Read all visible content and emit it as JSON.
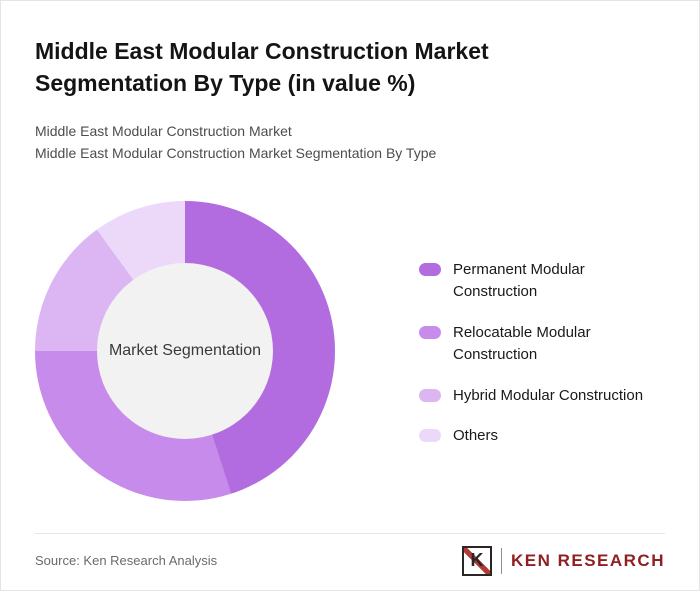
{
  "header": {
    "title": "Middle East Modular Construction Market Segmentation By Type (in value %)",
    "subtitle1": "Middle East Modular Construction Market",
    "subtitle2": "Middle East Modular Construction Market Segmentation By Type"
  },
  "chart_data": {
    "type": "pie",
    "variant": "donut",
    "title": "Middle East Modular Construction Market Segmentation By Type (in value %)",
    "center_label": "Market Segmentation",
    "labels": [
      "Permanent Modular Construction",
      "Relocatable Modular Construction",
      "Hybrid Modular Construction",
      "Others"
    ],
    "values": [
      45,
      30,
      15,
      10
    ],
    "values_note": "percent shares estimated from arc angles; no numeric labels shown in chart",
    "colors": [
      "#b26ce0",
      "#c78ceb",
      "#dcb6f3",
      "#ecd9fa"
    ],
    "center_color": "#f2f2f2",
    "legend_position": "right"
  },
  "footer": {
    "source": "Source: Ken Research Analysis",
    "logo_k": "K",
    "logo_text": "KEN RESEARCH",
    "logo_color": "#8e2021"
  }
}
